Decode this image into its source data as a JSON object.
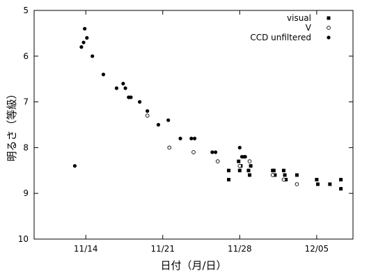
{
  "chart_data": {
    "type": "scatter",
    "title": "",
    "xlabel": "日付（月/日）",
    "ylabel": "明るさ（等級）",
    "x_unit": "day of November (values above 30 continue into December)",
    "xlim": [
      9.3,
      38.3
    ],
    "ylim": [
      5,
      10
    ],
    "y_inverted": true,
    "x_ticks": [
      {
        "value": 14,
        "label": "11/14"
      },
      {
        "value": 21,
        "label": "11/21"
      },
      {
        "value": 28,
        "label": "11/28"
      },
      {
        "value": 35,
        "label": "12/05"
      }
    ],
    "y_ticks": [
      {
        "value": 5,
        "label": "5"
      },
      {
        "value": 6,
        "label": "6"
      },
      {
        "value": 7,
        "label": "7"
      },
      {
        "value": 8,
        "label": "8"
      },
      {
        "value": 9,
        "label": "9"
      },
      {
        "value": 10,
        "label": "10"
      }
    ],
    "grid": false,
    "legend_position": "top-right",
    "series": [
      {
        "name": "visual",
        "marker": "filled-square",
        "color": "#000000",
        "points": [
          [
            27.0,
            8.7
          ],
          [
            27.0,
            8.5
          ],
          [
            27.9,
            8.3
          ],
          [
            28.0,
            8.5
          ],
          [
            28.1,
            8.4
          ],
          [
            28.8,
            8.5
          ],
          [
            28.9,
            8.6
          ],
          [
            29.0,
            8.4
          ],
          [
            31.0,
            8.5
          ],
          [
            31.1,
            8.5
          ],
          [
            31.2,
            8.6
          ],
          [
            32.0,
            8.5
          ],
          [
            32.1,
            8.6
          ],
          [
            32.2,
            8.7
          ],
          [
            33.2,
            8.6
          ],
          [
            35.0,
            8.7
          ],
          [
            35.1,
            8.8
          ],
          [
            36.2,
            8.8
          ],
          [
            37.2,
            8.7
          ],
          [
            37.2,
            8.9
          ]
        ]
      },
      {
        "name": "V",
        "marker": "open-circle",
        "color": "#000000",
        "points": [
          [
            19.6,
            7.3
          ],
          [
            21.6,
            8.0
          ],
          [
            23.8,
            8.1
          ],
          [
            26.0,
            8.3
          ],
          [
            28.0,
            8.4
          ],
          [
            28.9,
            8.3
          ],
          [
            31.0,
            8.6
          ],
          [
            32.0,
            8.7
          ],
          [
            33.2,
            8.8
          ]
        ]
      },
      {
        "name": "CCD unfiltered",
        "marker": "filled-circle",
        "color": "#000000",
        "points": [
          [
            13.0,
            8.4
          ],
          [
            13.6,
            5.8
          ],
          [
            13.8,
            5.7
          ],
          [
            13.9,
            5.4
          ],
          [
            14.1,
            5.6
          ],
          [
            14.6,
            6.0
          ],
          [
            15.6,
            6.4
          ],
          [
            16.8,
            6.7
          ],
          [
            17.4,
            6.6
          ],
          [
            17.6,
            6.7
          ],
          [
            17.9,
            6.9
          ],
          [
            18.1,
            6.9
          ],
          [
            18.9,
            7.0
          ],
          [
            19.6,
            7.2
          ],
          [
            20.6,
            7.5
          ],
          [
            21.5,
            7.4
          ],
          [
            22.6,
            7.8
          ],
          [
            23.6,
            7.8
          ],
          [
            23.9,
            7.8
          ],
          [
            25.5,
            8.1
          ],
          [
            25.8,
            8.1
          ],
          [
            28.0,
            8.0
          ],
          [
            28.2,
            8.2
          ],
          [
            28.4,
            8.2
          ],
          [
            28.5,
            8.2
          ]
        ]
      }
    ]
  }
}
